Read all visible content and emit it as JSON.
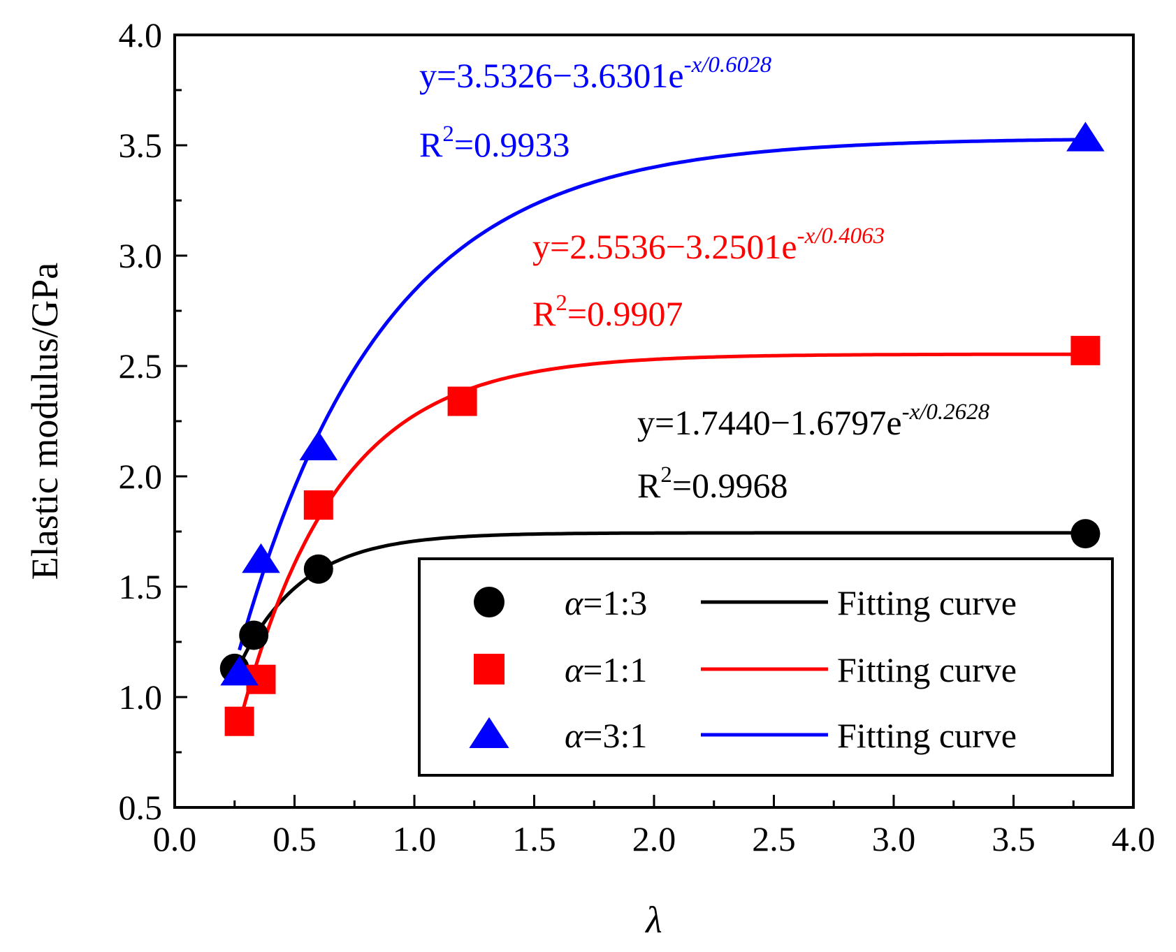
{
  "chart_data": {
    "type": "scatter",
    "xlabel": "λ",
    "ylabel": "Elastic modulus/GPa",
    "xlim": [
      0.0,
      4.0
    ],
    "ylim": [
      0.5,
      4.0
    ],
    "x_ticks": [
      "0.0",
      "0.5",
      "1.0",
      "1.5",
      "2.0",
      "2.5",
      "3.0",
      "3.5",
      "4.0"
    ],
    "y_ticks": [
      "0.5",
      "1.0",
      "1.5",
      "2.0",
      "2.5",
      "3.0",
      "3.5",
      "4.0"
    ],
    "grid": false,
    "legend_position": "bottom-right",
    "series": [
      {
        "name": "α=1:3",
        "symbol": "α",
        "ratio": "=1:3",
        "marker": "circle",
        "color": "#000000",
        "x": [
          0.25,
          0.33,
          0.6,
          3.8
        ],
        "y": [
          1.13,
          1.28,
          1.58,
          1.74
        ],
        "fit": {
          "a": 1.744,
          "b": 1.6797,
          "t": 0.2628,
          "x_start": 0.25,
          "x_end": 3.8,
          "label": "Fitting curve"
        },
        "equation": {
          "main": "y=1.7440−1.6797e",
          "exp": "-x/0.2628",
          "r2_base": "R",
          "r2_exp": "2",
          "r2_value": "=0.9968"
        }
      },
      {
        "name": "α=1:1",
        "symbol": "α",
        "ratio": "=1:1",
        "marker": "square",
        "color": "#ff0000",
        "x": [
          0.27,
          0.36,
          0.6,
          1.2,
          3.8
        ],
        "y": [
          0.89,
          1.08,
          1.87,
          2.34,
          2.57
        ],
        "fit": {
          "a": 2.5536,
          "b": 3.2501,
          "t": 0.4063,
          "x_start": 0.28,
          "x_end": 3.8,
          "label": "Fitting curve"
        },
        "equation": {
          "main": "y=2.5536−3.2501e",
          "exp": "-x/0.4063",
          "r2_base": "R",
          "r2_exp": "2",
          "r2_value": "=0.9907"
        }
      },
      {
        "name": "α=3:1",
        "symbol": "α",
        "ratio": "=3:1",
        "marker": "triangle",
        "color": "#0000ff",
        "x": [
          0.27,
          0.36,
          0.6,
          3.8
        ],
        "y": [
          1.11,
          1.62,
          2.13,
          3.53
        ],
        "fit": {
          "a": 3.5326,
          "b": 3.6301,
          "t": 0.6028,
          "x_start": 0.27,
          "x_end": 3.8,
          "label": "Fitting curve"
        },
        "equation": {
          "main": "y=3.5326−3.6301e",
          "exp": "-x/0.6028",
          "r2_base": "R",
          "r2_exp": "2",
          "r2_value": "=0.9933"
        }
      }
    ]
  }
}
